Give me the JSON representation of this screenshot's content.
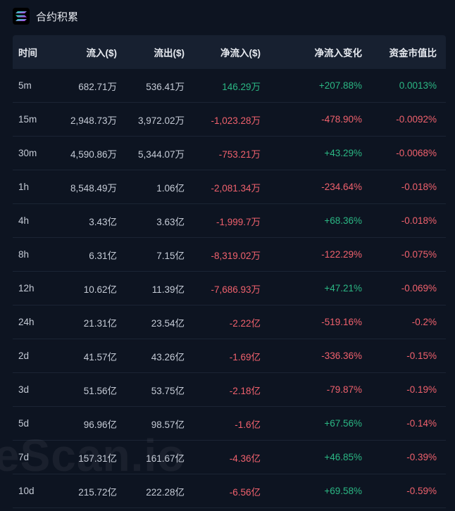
{
  "header": {
    "title": "合约积累",
    "logo_icon": "solana-logo-icon"
  },
  "columns": [
    "时间",
    "流入($)",
    "流出($)",
    "净流入($)",
    "净流入变化",
    "资金市值比"
  ],
  "rows": [
    {
      "time": "5m",
      "inflow": "682.71万",
      "outflow": "536.41万",
      "net": "146.29万",
      "change": "+207.88%",
      "ratio": "0.0013%",
      "net_dir": "pos",
      "change_dir": "pos",
      "ratio_dir": "pos"
    },
    {
      "time": "15m",
      "inflow": "2,948.73万",
      "outflow": "3,972.02万",
      "net": "-1,023.28万",
      "change": "-478.90%",
      "ratio": "-0.0092%",
      "net_dir": "neg",
      "change_dir": "neg",
      "ratio_dir": "neg"
    },
    {
      "time": "30m",
      "inflow": "4,590.86万",
      "outflow": "5,344.07万",
      "net": "-753.21万",
      "change": "+43.29%",
      "ratio": "-0.0068%",
      "net_dir": "neg",
      "change_dir": "pos",
      "ratio_dir": "neg"
    },
    {
      "time": "1h",
      "inflow": "8,548.49万",
      "outflow": "1.06亿",
      "net": "-2,081.34万",
      "change": "-234.64%",
      "ratio": "-0.018%",
      "net_dir": "neg",
      "change_dir": "neg",
      "ratio_dir": "neg"
    },
    {
      "time": "4h",
      "inflow": "3.43亿",
      "outflow": "3.63亿",
      "net": "-1,999.7万",
      "change": "+68.36%",
      "ratio": "-0.018%",
      "net_dir": "neg",
      "change_dir": "pos",
      "ratio_dir": "neg"
    },
    {
      "time": "8h",
      "inflow": "6.31亿",
      "outflow": "7.15亿",
      "net": "-8,319.02万",
      "change": "-122.29%",
      "ratio": "-0.075%",
      "net_dir": "neg",
      "change_dir": "neg",
      "ratio_dir": "neg"
    },
    {
      "time": "12h",
      "inflow": "10.62亿",
      "outflow": "11.39亿",
      "net": "-7,686.93万",
      "change": "+47.21%",
      "ratio": "-0.069%",
      "net_dir": "neg",
      "change_dir": "pos",
      "ratio_dir": "neg"
    },
    {
      "time": "24h",
      "inflow": "21.31亿",
      "outflow": "23.54亿",
      "net": "-2.22亿",
      "change": "-519.16%",
      "ratio": "-0.2%",
      "net_dir": "neg",
      "change_dir": "neg",
      "ratio_dir": "neg"
    },
    {
      "time": "2d",
      "inflow": "41.57亿",
      "outflow": "43.26亿",
      "net": "-1.69亿",
      "change": "-336.36%",
      "ratio": "-0.15%",
      "net_dir": "neg",
      "change_dir": "neg",
      "ratio_dir": "neg"
    },
    {
      "time": "3d",
      "inflow": "51.56亿",
      "outflow": "53.75亿",
      "net": "-2.18亿",
      "change": "-79.87%",
      "ratio": "-0.19%",
      "net_dir": "neg",
      "change_dir": "neg",
      "ratio_dir": "neg"
    },
    {
      "time": "5d",
      "inflow": "96.96亿",
      "outflow": "98.57亿",
      "net": "-1.6亿",
      "change": "+67.56%",
      "ratio": "-0.14%",
      "net_dir": "neg",
      "change_dir": "pos",
      "ratio_dir": "neg"
    },
    {
      "time": "7d",
      "inflow": "157.31亿",
      "outflow": "161.67亿",
      "net": "-4.36亿",
      "change": "+46.85%",
      "ratio": "-0.39%",
      "net_dir": "neg",
      "change_dir": "pos",
      "ratio_dir": "neg"
    },
    {
      "time": "10d",
      "inflow": "215.72亿",
      "outflow": "222.28亿",
      "net": "-6.56亿",
      "change": "+69.58%",
      "ratio": "-0.59%",
      "net_dir": "neg",
      "change_dir": "pos",
      "ratio_dir": "neg"
    }
  ],
  "watermark": "eScan.io",
  "colors": {
    "positive": "#2bb784",
    "negative": "#f0616d",
    "background": "#0d1421",
    "header_bg": "#172030"
  }
}
